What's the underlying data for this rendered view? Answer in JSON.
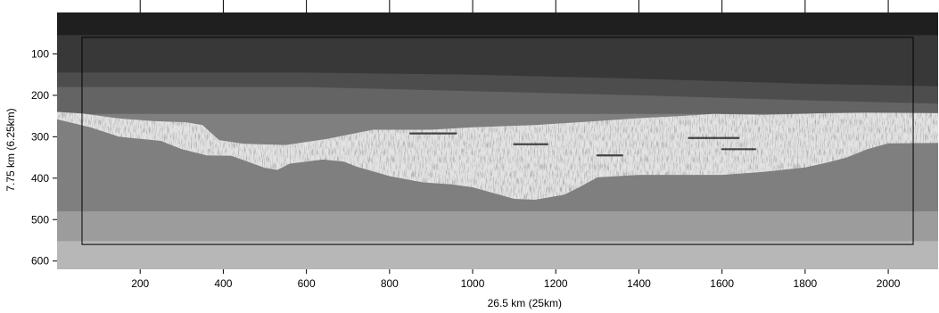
{
  "chart_data": {
    "type": "heatmap",
    "title": "",
    "xlabel": "26.5 km (25km)",
    "ylabel": "7.75 km (6.25km)",
    "xlim": [
      0,
      2120
    ],
    "ylim": [
      620,
      0
    ],
    "x_ticks": [
      200,
      400,
      600,
      800,
      1000,
      1200,
      1400,
      1600,
      1800,
      2000
    ],
    "y_ticks": [
      100,
      200,
      300,
      400,
      500,
      600
    ],
    "x_tick_labels": [
      "200",
      "400",
      "600",
      "800",
      "1000",
      "1200",
      "1400",
      "1600",
      "1800",
      "2000"
    ],
    "y_tick_labels": [
      "100",
      "200",
      "300",
      "400",
      "500",
      "600"
    ],
    "grid": false,
    "colormap": "grayscale",
    "layers": [
      {
        "name": "layer-1",
        "color": "#1f1f1f",
        "base": [
          [
            0,
            55
          ],
          [
            2120,
            55
          ]
        ]
      },
      {
        "name": "layer-2",
        "color": "#383838",
        "base": [
          [
            0,
            145
          ],
          [
            600,
            145
          ],
          [
            1000,
            150
          ],
          [
            1400,
            160
          ],
          [
            1800,
            172
          ],
          [
            2120,
            178
          ]
        ]
      },
      {
        "name": "layer-3",
        "color": "#4d4d4d",
        "base": [
          [
            0,
            180
          ],
          [
            600,
            180
          ],
          [
            1000,
            190
          ],
          [
            1400,
            200
          ],
          [
            1800,
            212
          ],
          [
            2120,
            220
          ]
        ]
      },
      {
        "name": "layer-4",
        "color": "#646464",
        "base": [
          [
            0,
            245
          ],
          [
            2120,
            245
          ]
        ]
      },
      {
        "name": "layer-5",
        "color": "#7f7f7f",
        "base": [
          [
            0,
            480
          ],
          [
            2120,
            480
          ]
        ]
      },
      {
        "name": "layer-6",
        "color": "#9c9c9c",
        "base": [
          [
            0,
            552
          ],
          [
            2120,
            552
          ]
        ]
      },
      {
        "name": "layer-7",
        "color": "#b7b7b7",
        "base": [
          [
            0,
            620
          ],
          [
            2120,
            620
          ]
        ]
      }
    ],
    "salt_body": {
      "color": "#e3e3e3",
      "top": [
        [
          0,
          240
        ],
        [
          60,
          244
        ],
        [
          150,
          256
        ],
        [
          230,
          262
        ],
        [
          310,
          265
        ],
        [
          350,
          272
        ],
        [
          370,
          290
        ],
        [
          390,
          308
        ],
        [
          450,
          317
        ],
        [
          550,
          320
        ],
        [
          650,
          305
        ],
        [
          760,
          283
        ],
        [
          900,
          283
        ],
        [
          1000,
          277
        ],
        [
          1150,
          272
        ],
        [
          1300,
          262
        ],
        [
          1400,
          255
        ],
        [
          1500,
          250
        ],
        [
          1580,
          245
        ],
        [
          1700,
          247
        ],
        [
          1850,
          243
        ],
        [
          1950,
          242
        ],
        [
          2120,
          243
        ]
      ],
      "bottom": [
        [
          2120,
          315
        ],
        [
          2000,
          316
        ],
        [
          1950,
          330
        ],
        [
          1900,
          350
        ],
        [
          1850,
          363
        ],
        [
          1800,
          374
        ],
        [
          1700,
          385
        ],
        [
          1600,
          392
        ],
        [
          1500,
          392
        ],
        [
          1400,
          392
        ],
        [
          1300,
          398
        ],
        [
          1260,
          420
        ],
        [
          1220,
          440
        ],
        [
          1150,
          452
        ],
        [
          1100,
          450
        ],
        [
          1000,
          422
        ],
        [
          950,
          415
        ],
        [
          880,
          410
        ],
        [
          800,
          395
        ],
        [
          720,
          372
        ],
        [
          690,
          360
        ],
        [
          640,
          355
        ],
        [
          560,
          365
        ],
        [
          530,
          380
        ],
        [
          500,
          375
        ],
        [
          420,
          346
        ],
        [
          360,
          345
        ],
        [
          300,
          330
        ],
        [
          250,
          310
        ],
        [
          150,
          300
        ],
        [
          80,
          277
        ],
        [
          0,
          258
        ]
      ]
    },
    "dark_streaks": [
      {
        "x": [
          850,
          960
        ],
        "y": 292
      },
      {
        "x": [
          1300,
          1360
        ],
        "y": 345
      },
      {
        "x": [
          1600,
          1680
        ],
        "y": 330
      },
      {
        "x": [
          1520,
          1640
        ],
        "y": 303
      },
      {
        "x": [
          1100,
          1180
        ],
        "y": 318
      }
    ],
    "inner_box": {
      "x": [
        60,
        2060
      ],
      "y": [
        60,
        560
      ]
    }
  }
}
